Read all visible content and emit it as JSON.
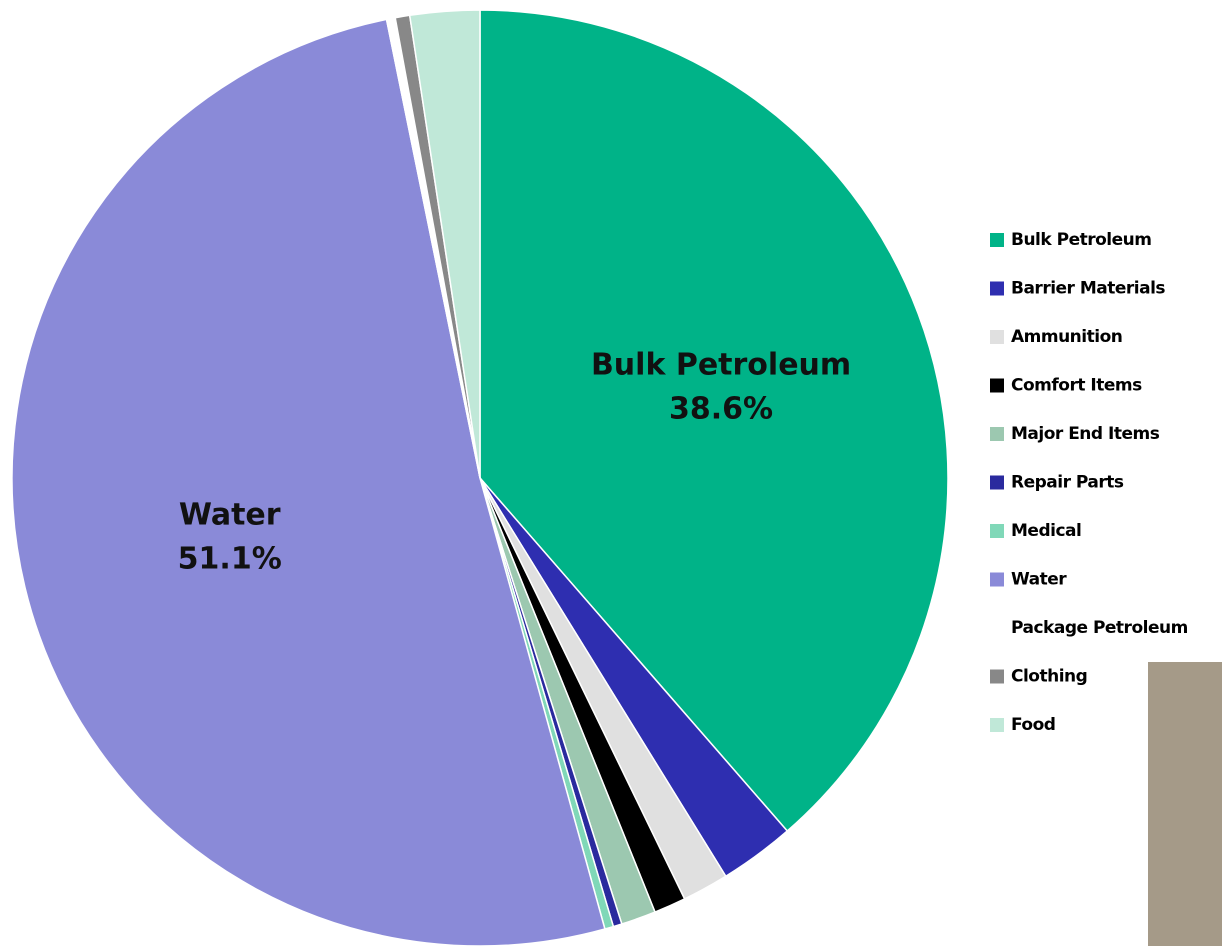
{
  "chart_data": {
    "type": "pie",
    "categories": [
      "Bulk Petroleum",
      "Barrier Materials",
      "Ammunition",
      "Comfort Items",
      "Major End Items",
      "Repair Parts",
      "Medical",
      "Water",
      "Package Petroleum",
      "Clothing",
      "Food"
    ],
    "values": [
      38.6,
      2.6,
      1.6,
      1.1,
      1.2,
      0.3,
      0.3,
      51.1,
      0.3,
      0.5,
      2.4
    ],
    "value_labels": [
      "38.6%",
      null,
      null,
      null,
      null,
      null,
      null,
      "51.1%",
      null,
      null,
      null
    ],
    "colors": [
      "#00b388",
      "#2e2eb0",
      "#e0e0e0",
      "#000000",
      "#9cc8b0",
      "#2a2a9e",
      "#80d8b8",
      "#8a8ad8",
      "#ffffff",
      "#888888",
      "#c0e8d8"
    ],
    "legend": "right"
  }
}
